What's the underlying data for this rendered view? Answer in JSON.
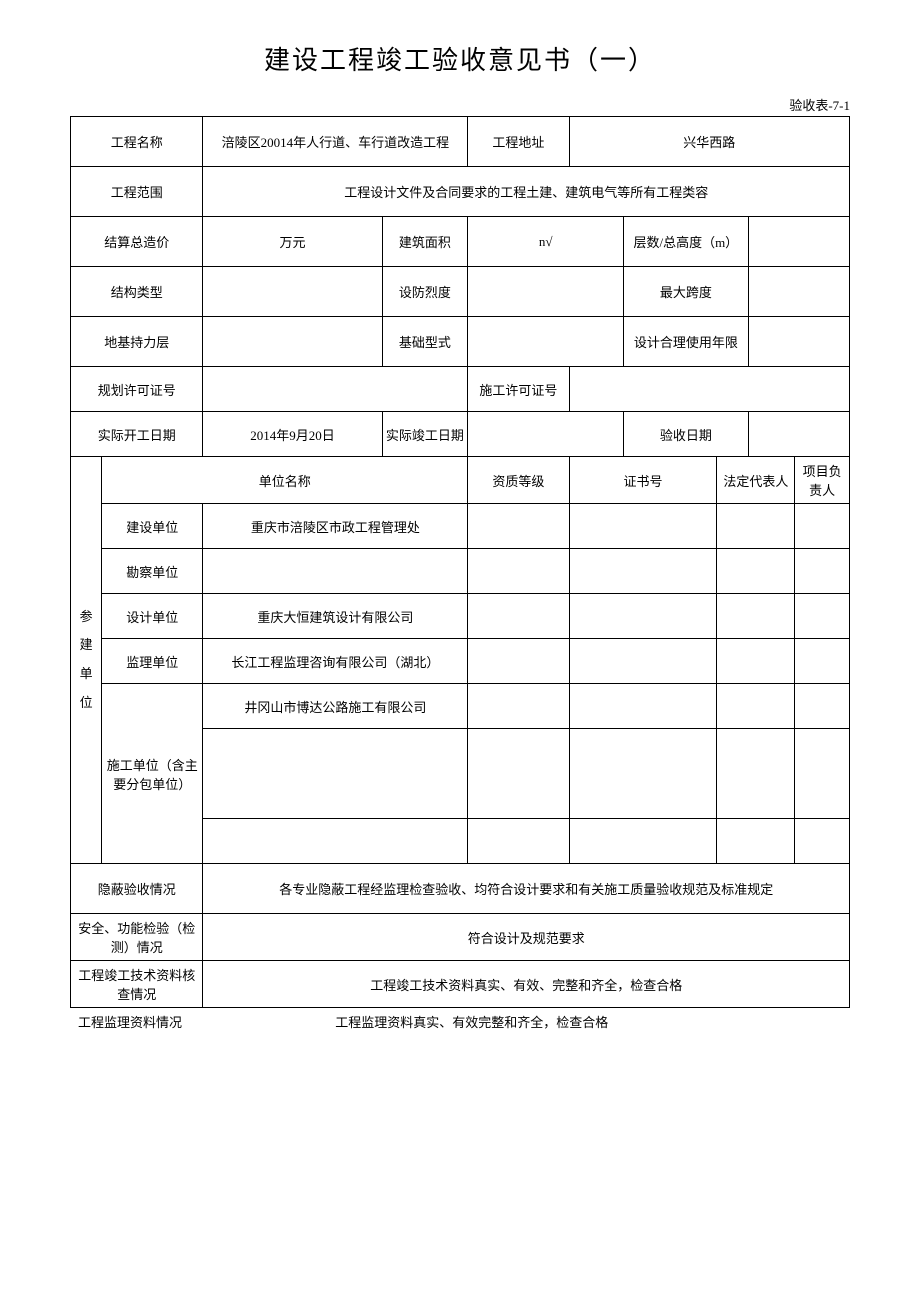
{
  "doc": {
    "title": "建设工程竣工验收意见书（一）",
    "form_code": "验收表-7-1"
  },
  "fields": {
    "project_name_label": "工程名称",
    "project_name_value": "涪陵区20014年人行道、车行道改造工程",
    "project_address_label": "工程地址",
    "project_address_value": "兴华西路",
    "project_scope_label": "工程范围",
    "project_scope_value": "工程设计文件及合同要求的工程土建、建筑电气等所有工程类容",
    "settlement_cost_label": "结算总造价",
    "settlement_cost_value": "万元",
    "building_area_label": "建筑面积",
    "building_area_value": "n√",
    "floors_height_label": "层数/总高度（m）",
    "floors_height_value": "",
    "structure_type_label": "结构类型",
    "structure_type_value": "",
    "seismic_intensity_label": "设防烈度",
    "seismic_intensity_value": "",
    "max_span_label": "最大跨度",
    "max_span_value": "",
    "foundation_layer_label": "地基持力层",
    "foundation_layer_value": "",
    "foundation_type_label": "基础型式",
    "foundation_type_value": "",
    "design_life_label": "设计合理使用年限",
    "design_life_value": "",
    "planning_permit_label": "规划许可证号",
    "planning_permit_value": "",
    "construction_permit_label": "施工许可证号",
    "construction_permit_value": "",
    "actual_start_label": "实际开工日期",
    "actual_start_value": "2014年9月20日",
    "actual_end_label": "实际竣工日期",
    "actual_end_value": "",
    "acceptance_date_label": "验收日期",
    "acceptance_date_value": ""
  },
  "units_header": {
    "unit_name": "单位名称",
    "qualification": "资质等级",
    "cert_no": "证书号",
    "legal_rep": "法定代表人",
    "project_lead": "项目负责人"
  },
  "units": {
    "group_label": "参建单位",
    "construction_unit_label": "建设单位",
    "construction_unit_value": "重庆市涪陵区市政工程管理处",
    "survey_unit_label": "勘察单位",
    "survey_unit_value": "",
    "design_unit_label": "设计单位",
    "design_unit_value": "重庆大恒建筑设计有限公司",
    "supervision_unit_label": "监理单位",
    "supervision_unit_value": "长江工程监理咨询有限公司（湖北）",
    "contractor_label": "施工单位（含主要分包单位）",
    "contractor_value": "井冈山市博达公路施工有限公司"
  },
  "status": {
    "concealed_label": "隐蔽验收情况",
    "concealed_value": "各专业隐蔽工程经监理检查验收、均符合设计要求和有关施工质量验收规范及标准规定",
    "safety_label": "安全、功能检验（检测）情况",
    "safety_value": "符合设计及规范要求",
    "completion_docs_label": "工程竣工技术资料核查情况",
    "completion_docs_value": "工程竣工技术资料真实、有效、完整和齐全，检查合格",
    "supervision_docs_label": "工程监理资料情况",
    "supervision_docs_value": "工程监理资料真实、有效完整和齐全，检查合格"
  },
  "style": {
    "page_bg": "#ffffff",
    "border_color": "#000000",
    "title_fontsize": 26,
    "cell_fontsize": 13,
    "font_family": "SimSun"
  }
}
